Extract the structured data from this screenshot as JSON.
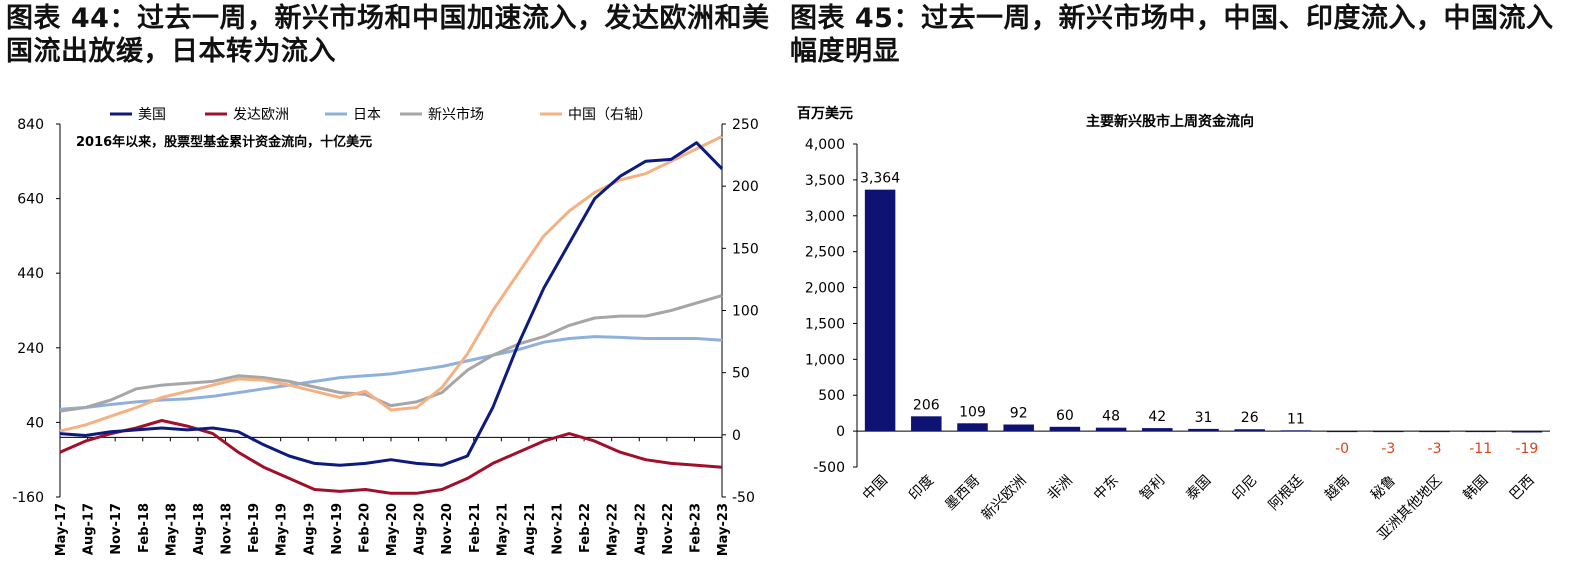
{
  "left_figure": {
    "title": "图表 44：过去一周，新兴市场和中国加速流入，发达欧洲和美国流出放缓，日本转为流入"
  },
  "right_figure": {
    "title": "图表 45：过去一周，新兴市场中，中国、印度流入，中国流入幅度明显"
  },
  "chart_data": [
    {
      "type": "line",
      "annotation": "2016年以来，股票型基金累计资金流向，十亿美元",
      "legend_position": "top",
      "x_tick_labels": [
        "May-17",
        "Aug-17",
        "Nov-17",
        "Feb-18",
        "May-18",
        "Aug-18",
        "Nov-18",
        "Feb-19",
        "May-19",
        "Aug-19",
        "Nov-19",
        "Feb-20",
        "May-20",
        "Aug-20",
        "Nov-20",
        "Feb-21",
        "May-21",
        "Aug-21",
        "Nov-21",
        "Feb-22",
        "May-22",
        "Aug-22",
        "Nov-22",
        "Feb-23",
        "May-23"
      ],
      "y_left": {
        "ticks": [
          "840",
          "640",
          "440",
          "240",
          "40",
          "-160"
        ],
        "range": [
          -160,
          840
        ]
      },
      "y_right": {
        "ticks": [
          "250",
          "200",
          "150",
          "100",
          "50",
          "0",
          "-50"
        ],
        "range": [
          -50,
          250
        ]
      },
      "grid": false,
      "colors": {
        "美国": "#0d1a80",
        "发达欧洲": "#a0102a",
        "日本": "#8fb0dd",
        "新兴市场": "#a6a6a6",
        "中国（右轴）": "#f4b183"
      },
      "series": [
        {
          "name": "美国",
          "axis": "left",
          "values": [
            10,
            5,
            15,
            20,
            25,
            20,
            25,
            15,
            -20,
            -50,
            -70,
            -75,
            -70,
            -60,
            -70,
            -75,
            -50,
            80,
            250,
            400,
            520,
            640,
            700,
            740,
            745,
            790,
            720
          ]
        },
        {
          "name": "发达欧洲",
          "axis": "left",
          "values": [
            -40,
            -10,
            10,
            25,
            45,
            30,
            10,
            -40,
            -80,
            -110,
            -140,
            -145,
            -140,
            -150,
            -150,
            -140,
            -110,
            -70,
            -40,
            -10,
            10,
            -10,
            -40,
            -60,
            -70,
            -75,
            -80
          ]
        },
        {
          "name": "日本",
          "axis": "left",
          "values": [
            75,
            80,
            88,
            95,
            100,
            103,
            110,
            120,
            130,
            140,
            150,
            160,
            165,
            170,
            180,
            190,
            205,
            220,
            235,
            255,
            265,
            270,
            268,
            265,
            265,
            265,
            260
          ]
        },
        {
          "name": "新兴市场",
          "axis": "left",
          "values": [
            70,
            80,
            100,
            130,
            140,
            145,
            150,
            165,
            160,
            150,
            135,
            120,
            115,
            85,
            95,
            120,
            180,
            220,
            250,
            270,
            300,
            320,
            325,
            325,
            340,
            360,
            380
          ]
        },
        {
          "name": "中国（右轴）",
          "axis": "right",
          "values": [
            3,
            8,
            15,
            22,
            30,
            35,
            40,
            45,
            44,
            40,
            35,
            30,
            35,
            20,
            22,
            38,
            65,
            100,
            130,
            160,
            180,
            195,
            205,
            210,
            220,
            230,
            240
          ]
        }
      ]
    },
    {
      "type": "bar",
      "title": "主要新兴股市上周资金流向",
      "ylabel": "百万美元",
      "ylim": [
        -500,
        4000
      ],
      "y_ticks": [
        "4,000",
        "3,500",
        "3,000",
        "2,500",
        "2,000",
        "1,500",
        "1,000",
        "500",
        "0",
        "-500"
      ],
      "bar_color": "#0d1273",
      "negative_label_color": "#d9441a",
      "categories": [
        "中国",
        "印度",
        "墨西哥",
        "新兴欧洲",
        "非洲",
        "中东",
        "智利",
        "泰国",
        "印尼",
        "阿根廷",
        "越南",
        "秘鲁",
        "亚洲其他地区",
        "韩国",
        "巴西"
      ],
      "values": [
        3364,
        206,
        109,
        92,
        60,
        48,
        42,
        31,
        26,
        11,
        -0.4,
        -3,
        -3,
        -11,
        -19
      ],
      "data_labels": [
        "3,364",
        "206",
        "109",
        "92",
        "60",
        "48",
        "42",
        "31",
        "26",
        "11",
        "-0",
        "-3",
        "-3",
        "-11",
        "-19"
      ]
    }
  ]
}
